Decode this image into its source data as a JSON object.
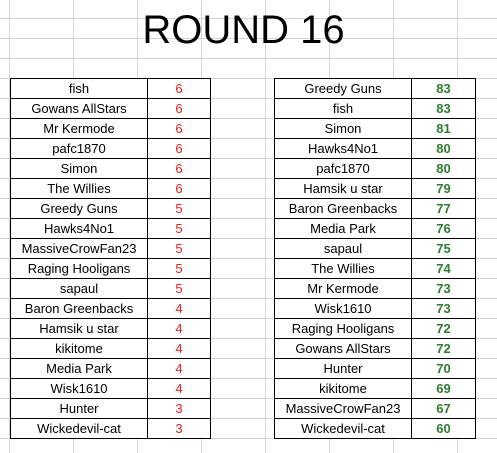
{
  "title": "ROUND 16",
  "colors": {
    "round_score": "#e02020",
    "total_score": "#2e7d32"
  },
  "round_scores": [
    {
      "name": "fish",
      "score": "6"
    },
    {
      "name": "Gowans AllStars",
      "score": "6"
    },
    {
      "name": "Mr Kermode",
      "score": "6"
    },
    {
      "name": "pafc1870",
      "score": "6"
    },
    {
      "name": "Simon",
      "score": "6"
    },
    {
      "name": "The Willies",
      "score": "6"
    },
    {
      "name": "Greedy Guns",
      "score": "5"
    },
    {
      "name": "Hawks4No1",
      "score": "5"
    },
    {
      "name": "MassiveCrowFan23",
      "score": "5"
    },
    {
      "name": "Raging Hooligans",
      "score": "5"
    },
    {
      "name": "sapaul",
      "score": "5"
    },
    {
      "name": "Baron Greenbacks",
      "score": "4"
    },
    {
      "name": "Hamsik u star",
      "score": "4"
    },
    {
      "name": "kikitome",
      "score": "4"
    },
    {
      "name": "Media Park",
      "score": "4"
    },
    {
      "name": "Wisk1610",
      "score": "4"
    },
    {
      "name": "Hunter",
      "score": "3"
    },
    {
      "name": "Wickedevil-cat",
      "score": "3"
    }
  ],
  "total_scores": [
    {
      "name": "Greedy Guns",
      "score": "83"
    },
    {
      "name": "fish",
      "score": "83"
    },
    {
      "name": "Simon",
      "score": "81"
    },
    {
      "name": "Hawks4No1",
      "score": "80"
    },
    {
      "name": "pafc1870",
      "score": "80"
    },
    {
      "name": "Hamsik u star",
      "score": "79"
    },
    {
      "name": "Baron Greenbacks",
      "score": "77"
    },
    {
      "name": "Media Park",
      "score": "76"
    },
    {
      "name": "sapaul",
      "score": "75"
    },
    {
      "name": "The Willies",
      "score": "74"
    },
    {
      "name": "Mr Kermode",
      "score": "73"
    },
    {
      "name": "Wisk1610",
      "score": "73"
    },
    {
      "name": "Raging Hooligans",
      "score": "72"
    },
    {
      "name": "Gowans AllStars",
      "score": "72"
    },
    {
      "name": "Hunter",
      "score": "70"
    },
    {
      "name": "kikitome",
      "score": "69"
    },
    {
      "name": "MassiveCrowFan23",
      "score": "67"
    },
    {
      "name": "Wickedevil-cat",
      "score": "60"
    }
  ]
}
